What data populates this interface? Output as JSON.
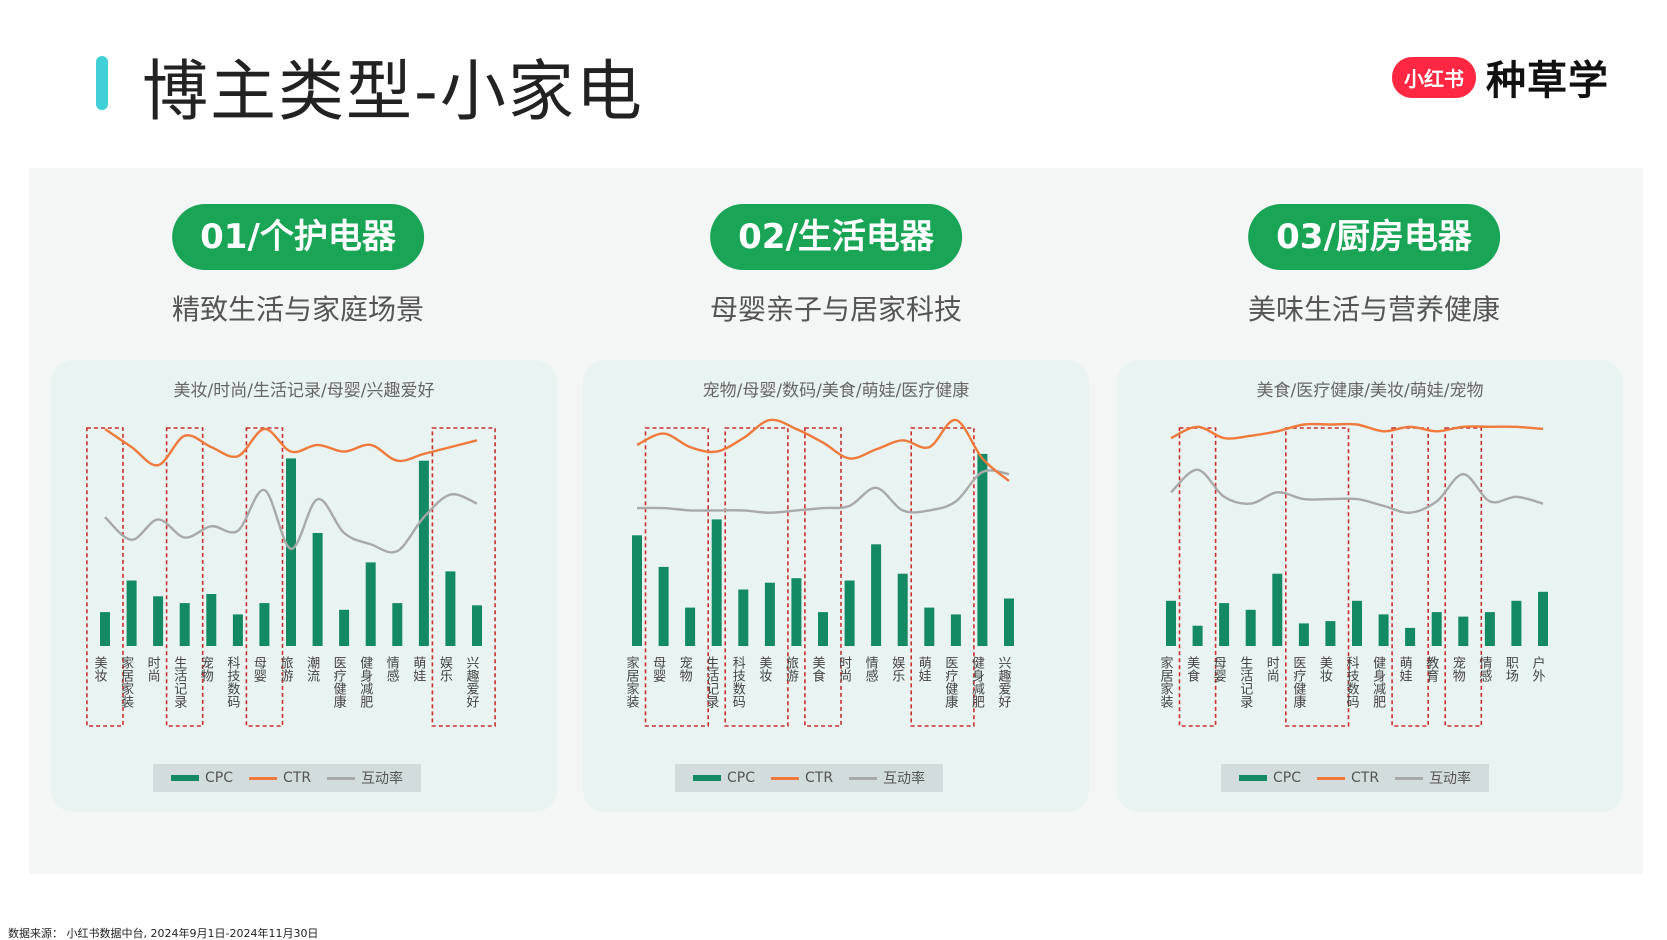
{
  "header": {
    "title": "博主类型-小家电",
    "brand_badge": "小红书",
    "brand_text": "种草学"
  },
  "legend": {
    "cpc": "CPC",
    "ctr": "CTR",
    "interaction": "互动率"
  },
  "colors": {
    "cpc": "#138a63",
    "ctr": "#ef7a3c",
    "interaction": "#a9a9a9",
    "pill": "#1aa556",
    "highlight": "#c8312f"
  },
  "sections": [
    {
      "pill": "01/个护电器",
      "subtitle": "精致生活与家庭场景",
      "caption": "美妆/时尚/生活记录/母婴/兴趣爱好"
    },
    {
      "pill": "02/生活电器",
      "subtitle": "母婴亲子与居家科技",
      "caption": "宠物/母婴/数码/美食/萌娃/医疗健康"
    },
    {
      "pill": "03/厨房电器",
      "subtitle": "美味生活与营养健康",
      "caption": "美食/医疗健康/美妆/萌娃/宠物"
    }
  ],
  "chart_data": [
    {
      "type": "bar",
      "categories": [
        "美妆",
        "家居家装",
        "时尚",
        "生活记录",
        "宠物",
        "科技数码",
        "母婴",
        "旅游",
        "潮流",
        "医疗健康",
        "健身减肥",
        "情感",
        "萌娃",
        "娱乐",
        "兴趣爱好"
      ],
      "series": [
        {
          "name": "CPC",
          "type": "bar",
          "values": [
            15,
            29,
            22,
            19,
            23,
            14,
            19,
            83,
            50,
            16,
            37,
            19,
            82,
            33,
            18
          ]
        },
        {
          "name": "CTR",
          "type": "line",
          "values": [
            96,
            88,
            80,
            93,
            88,
            84,
            96,
            86,
            89,
            86,
            89,
            82,
            85,
            88,
            91
          ]
        },
        {
          "name": "互动率",
          "type": "line",
          "values": [
            57,
            47,
            56,
            48,
            53,
            51,
            69,
            43,
            65,
            50,
            45,
            42,
            57,
            67,
            63
          ]
        }
      ],
      "highlighted": [
        "美妆",
        "生活记录",
        "母婴",
        "娱乐",
        "兴趣爱好"
      ],
      "ylim": [
        0,
        100
      ]
    },
    {
      "type": "bar",
      "categories": [
        "家居家装",
        "母婴",
        "宠物",
        "生活记录",
        "科技数码",
        "美妆",
        "旅游",
        "美食",
        "时尚",
        "情感",
        "娱乐",
        "萌娃",
        "医疗健康",
        "健身减肥",
        "兴趣爱好"
      ],
      "series": [
        {
          "name": "CPC",
          "type": "bar",
          "values": [
            49,
            35,
            17,
            56,
            25,
            28,
            30,
            15,
            29,
            45,
            32,
            17,
            14,
            85,
            21
          ]
        },
        {
          "name": "CTR",
          "type": "line",
          "values": [
            89,
            94,
            88,
            86,
            92,
            100,
            96,
            90,
            83,
            87,
            91,
            88,
            100,
            83,
            73
          ]
        },
        {
          "name": "互动率",
          "type": "line",
          "values": [
            61,
            61,
            60,
            60,
            60,
            59,
            60,
            61,
            62,
            70,
            60,
            60,
            64,
            77,
            76
          ]
        }
      ],
      "highlighted": [
        "母婴",
        "宠物",
        "科技数码",
        "美妆",
        "美食",
        "萌娃",
        "医疗健康"
      ],
      "ylim": [
        0,
        100
      ]
    },
    {
      "type": "bar",
      "categories": [
        "家居家装",
        "美食",
        "母婴",
        "生活记录",
        "时尚",
        "医疗健康",
        "美妆",
        "科技数码",
        "健身减肥",
        "萌娃",
        "教育",
        "宠物",
        "情感",
        "职场",
        "户外"
      ],
      "series": [
        {
          "name": "CPC",
          "type": "bar",
          "values": [
            20,
            9,
            19,
            16,
            32,
            10,
            11,
            20,
            14,
            8,
            15,
            13,
            15,
            20,
            24
          ]
        },
        {
          "name": "CTR",
          "type": "line",
          "values": [
            92,
            97,
            92,
            93,
            95,
            98,
            98,
            98,
            95,
            97,
            95,
            97,
            97,
            97,
            96
          ]
        },
        {
          "name": "互动率",
          "type": "line",
          "values": [
            68,
            78,
            66,
            63,
            68,
            65,
            65,
            65,
            62,
            59,
            64,
            76,
            64,
            66,
            63
          ]
        }
      ],
      "highlighted": [
        "美食",
        "医疗健康",
        "美妆",
        "萌娃",
        "宠物"
      ],
      "ylim": [
        0,
        100
      ]
    }
  ],
  "footer": {
    "source": "数据来源： 小红书数据中台, 2024年9月1日-2024年11月30日"
  }
}
